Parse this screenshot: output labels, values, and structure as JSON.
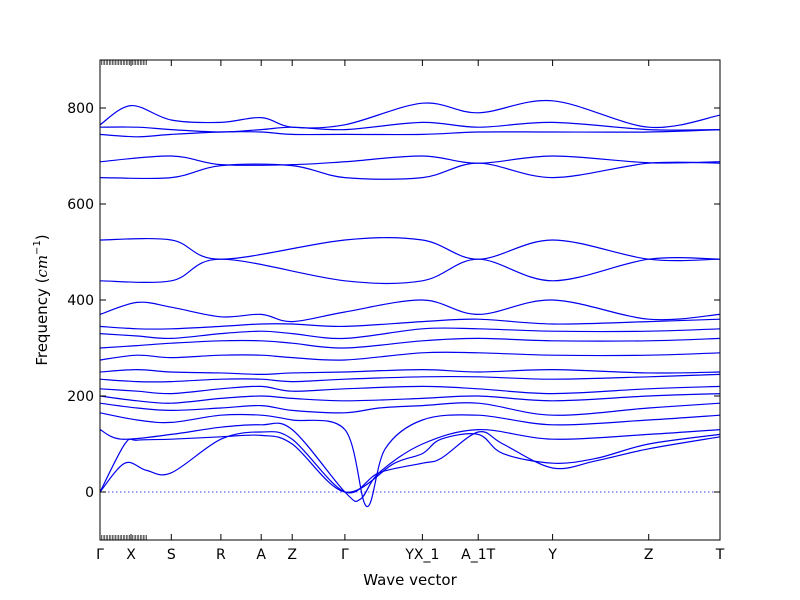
{
  "chart_data": {
    "type": "line",
    "title": "",
    "xlabel": "Wave vector",
    "ylabel_text": "Frequency (",
    "ylabel_unit": "cm",
    "ylabel_exp": "−1",
    "ylabel_close": ")",
    "ylim": [
      -100,
      900
    ],
    "xlim": [
      0,
      20
    ],
    "yticks": [
      0,
      200,
      400,
      600,
      800
    ],
    "ytick_labels": [
      "0",
      "200",
      "400",
      "600",
      "800"
    ],
    "xticks": [
      {
        "x": 0.0,
        "label": "Γ"
      },
      {
        "x": 1.0,
        "label": "X"
      },
      {
        "x": 2.3,
        "label": "S"
      },
      {
        "x": 3.9,
        "label": "R"
      },
      {
        "x": 5.2,
        "label": "A"
      },
      {
        "x": 6.2,
        "label": "Z"
      },
      {
        "x": 7.9,
        "label": "Γ"
      },
      {
        "x": 10.4,
        "label": "YX_1"
      },
      {
        "x": 12.2,
        "label": "A_1T"
      },
      {
        "x": 14.6,
        "label": "Y"
      },
      {
        "x": 17.7,
        "label": "Z"
      },
      {
        "x": 20.0,
        "label": "T"
      }
    ],
    "zero_line": 0,
    "series_color": "#0000ee",
    "series": [
      {
        "x": [
          0,
          0.8,
          1.2,
          2.3,
          3.9,
          5.2,
          6.2,
          7.9,
          9.5,
          10.4,
          11.0,
          12.2,
          13.0,
          14.6,
          16.0,
          17.7,
          20.0
        ],
        "y": [
          0,
          100,
          108,
          110,
          115,
          118,
          100,
          0,
          60,
          80,
          110,
          120,
          80,
          60,
          70,
          100,
          120
        ]
      },
      {
        "x": [
          0,
          0.8,
          1.5,
          2.3,
          3.9,
          5.2,
          6.2,
          7.9,
          9.0,
          10.4,
          11.0,
          12.2,
          13.0,
          14.6,
          16.0,
          17.7,
          20.0
        ],
        "y": [
          0,
          60,
          45,
          40,
          110,
          125,
          110,
          0,
          40,
          60,
          70,
          125,
          100,
          50,
          65,
          90,
          115
        ]
      },
      {
        "x": [
          0,
          0.7,
          2.3,
          3.9,
          5.2,
          6.2,
          7.9,
          8.4,
          9.0,
          10.4,
          12.2,
          14.6,
          17.7,
          20.0
        ],
        "y": [
          130,
          110,
          120,
          135,
          140,
          130,
          0,
          -15,
          40,
          100,
          130,
          110,
          120,
          130
        ]
      },
      {
        "x": [
          0,
          1.2,
          2.3,
          3.9,
          5.2,
          6.2,
          7.9,
          8.6,
          9.2,
          10.4,
          12.2,
          14.6,
          17.7,
          20.0
        ],
        "y": [
          165,
          150,
          145,
          160,
          160,
          150,
          130,
          -30,
          90,
          150,
          160,
          140,
          150,
          160
        ]
      },
      {
        "x": [
          0,
          1.2,
          2.3,
          3.9,
          5.2,
          6.2,
          7.9,
          9.0,
          10.4,
          12.2,
          14.6,
          17.7,
          20.0
        ],
        "y": [
          185,
          175,
          170,
          175,
          180,
          170,
          165,
          175,
          180,
          185,
          160,
          175,
          185
        ]
      },
      {
        "x": [
          0,
          1.2,
          2.3,
          3.9,
          5.2,
          6.2,
          7.9,
          10.4,
          12.2,
          14.6,
          17.7,
          20.0
        ],
        "y": [
          200,
          190,
          185,
          195,
          200,
          195,
          190,
          195,
          200,
          190,
          200,
          205
        ]
      },
      {
        "x": [
          0,
          1.2,
          2.3,
          3.9,
          5.2,
          6.2,
          7.9,
          10.4,
          12.2,
          14.6,
          17.7,
          20.0
        ],
        "y": [
          215,
          210,
          205,
          215,
          220,
          210,
          215,
          220,
          215,
          205,
          215,
          220
        ]
      },
      {
        "x": [
          0,
          1.2,
          2.3,
          3.9,
          5.2,
          6.2,
          7.9,
          10.4,
          12.2,
          14.6,
          17.7,
          20.0
        ],
        "y": [
          235,
          230,
          230,
          235,
          235,
          230,
          235,
          240,
          240,
          235,
          240,
          245
        ]
      },
      {
        "x": [
          0,
          1.2,
          2.3,
          3.9,
          5.2,
          6.2,
          7.9,
          10.4,
          12.2,
          14.6,
          17.7,
          20.0
        ],
        "y": [
          250,
          255,
          250,
          248,
          245,
          248,
          250,
          255,
          250,
          255,
          248,
          250
        ]
      },
      {
        "x": [
          0,
          1.2,
          2.3,
          3.9,
          5.2,
          6.2,
          7.9,
          10.4,
          12.2,
          14.6,
          17.7,
          20.0
        ],
        "y": [
          275,
          285,
          280,
          285,
          285,
          280,
          275,
          290,
          290,
          285,
          285,
          290
        ]
      },
      {
        "x": [
          0,
          1.2,
          2.3,
          3.9,
          5.2,
          6.2,
          7.9,
          10.4,
          12.2,
          14.6,
          17.7,
          20.0
        ],
        "y": [
          300,
          305,
          310,
          315,
          315,
          310,
          300,
          315,
          320,
          315,
          315,
          320
        ]
      },
      {
        "x": [
          0,
          1.2,
          2.3,
          3.9,
          5.2,
          6.2,
          7.9,
          10.4,
          12.2,
          14.6,
          17.7,
          20.0
        ],
        "y": [
          330,
          325,
          320,
          330,
          335,
          330,
          320,
          340,
          340,
          335,
          335,
          340
        ]
      },
      {
        "x": [
          0,
          1.2,
          2.3,
          3.9,
          5.2,
          6.2,
          7.9,
          10.4,
          12.2,
          14.6,
          17.7,
          20.0
        ],
        "y": [
          345,
          340,
          340,
          345,
          350,
          350,
          345,
          355,
          360,
          350,
          355,
          360
        ]
      },
      {
        "x": [
          0,
          1.2,
          2.3,
          3.9,
          5.2,
          6.2,
          7.9,
          10.4,
          12.2,
          14.6,
          17.7,
          20.0
        ],
        "y": [
          370,
          395,
          385,
          365,
          370,
          355,
          375,
          400,
          370,
          400,
          360,
          370
        ]
      },
      {
        "x": [
          0,
          2.3,
          3.9,
          7.9,
          10.4,
          12.2,
          14.6,
          17.7,
          20.0
        ],
        "y": [
          440,
          440,
          485,
          440,
          440,
          485,
          440,
          485,
          485
        ]
      },
      {
        "x": [
          0,
          2.3,
          3.9,
          7.9,
          10.4,
          12.2,
          14.6,
          17.7,
          20.0
        ],
        "y": [
          525,
          525,
          485,
          525,
          525,
          485,
          525,
          485,
          485
        ]
      },
      {
        "x": [
          0,
          2.3,
          3.9,
          6.2,
          7.9,
          10.4,
          12.2,
          14.6,
          17.7,
          20.0
        ],
        "y": [
          655,
          655,
          680,
          680,
          655,
          655,
          685,
          655,
          685,
          685
        ]
      },
      {
        "x": [
          0,
          2.3,
          3.9,
          6.2,
          7.9,
          10.4,
          12.2,
          14.6,
          17.7,
          20.0
        ],
        "y": [
          688,
          700,
          682,
          682,
          688,
          700,
          685,
          700,
          686,
          688
        ]
      },
      {
        "x": [
          0,
          1.2,
          2.3,
          3.9,
          5.2,
          6.2,
          7.9,
          10.4,
          12.2,
          14.6,
          17.7,
          20.0
        ],
        "y": [
          745,
          740,
          745,
          750,
          750,
          745,
          745,
          745,
          750,
          750,
          750,
          755
        ]
      },
      {
        "x": [
          0,
          1.2,
          2.3,
          3.9,
          5.2,
          6.2,
          7.9,
          10.4,
          12.2,
          14.6,
          17.7,
          20.0
        ],
        "y": [
          760,
          760,
          755,
          750,
          755,
          760,
          755,
          770,
          760,
          770,
          755,
          755
        ]
      },
      {
        "x": [
          0,
          1.0,
          2.3,
          3.9,
          5.2,
          6.2,
          7.9,
          10.4,
          12.2,
          14.6,
          17.7,
          20.0
        ],
        "y": [
          765,
          805,
          775,
          770,
          780,
          760,
          765,
          810,
          790,
          815,
          760,
          785
        ]
      }
    ]
  }
}
